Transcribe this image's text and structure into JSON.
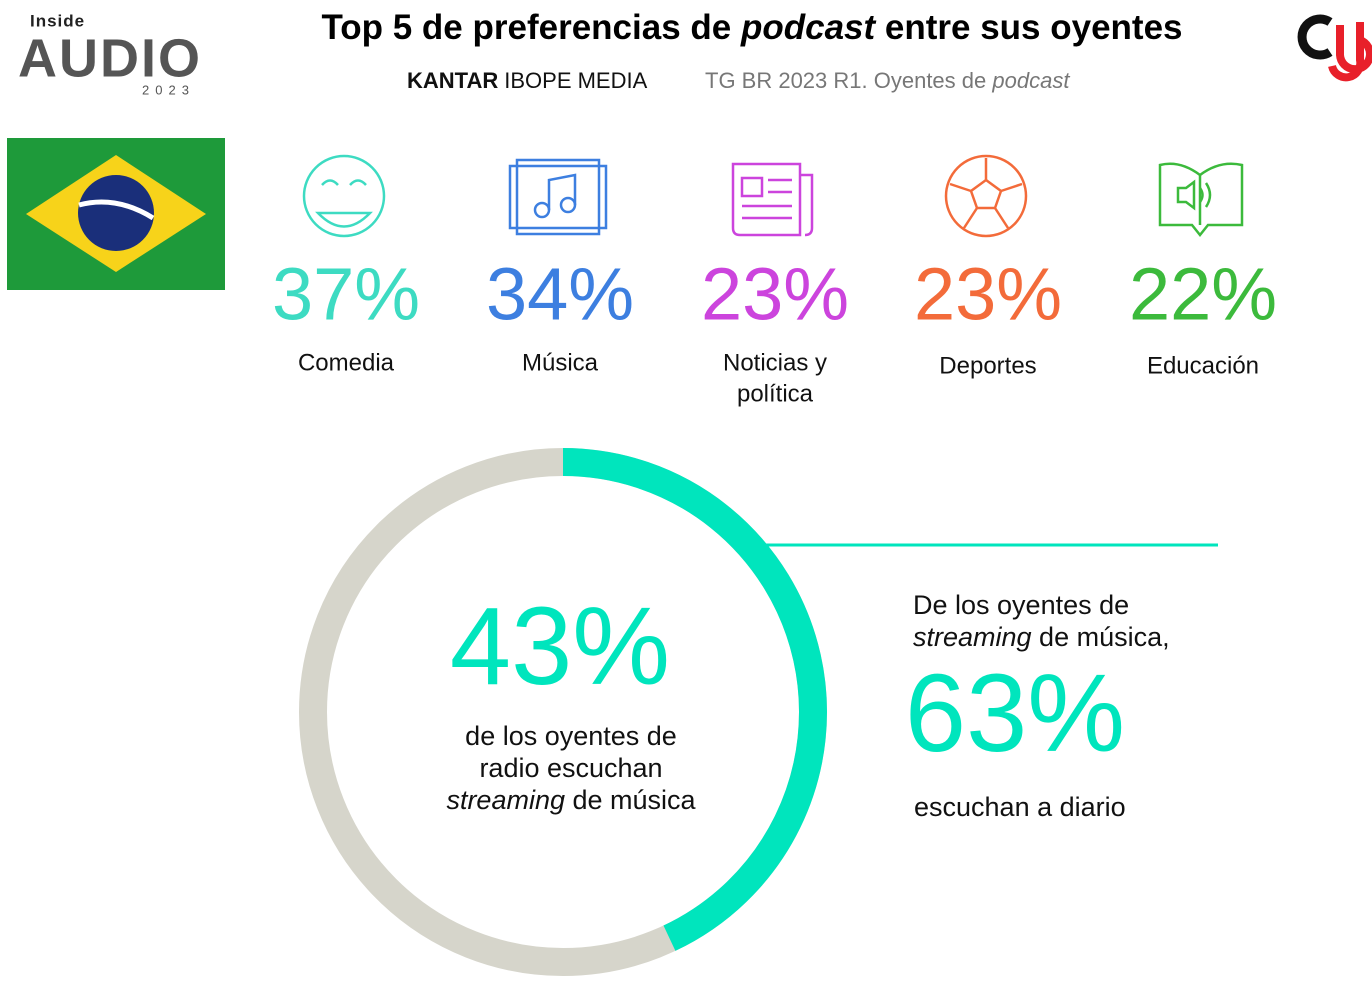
{
  "header": {
    "title": [
      "Top 5 de preferencias de ",
      "podcast",
      " entre sus oyentes"
    ],
    "brand": [
      "KANTAR",
      "IBOPE MEDIA"
    ],
    "source": [
      "TG BR 2023 R1. Oyentes de ",
      "podcast"
    ],
    "logo": {
      "small": "Inside",
      "big": "AUDIO",
      "year": "2023"
    }
  },
  "categories": [
    {
      "label": [
        "Comedia"
      ],
      "value": "37%",
      "color": "#3ddbc2"
    },
    {
      "label": [
        "Música"
      ],
      "value": "34%",
      "color": "#3d7fe0"
    },
    {
      "label": [
        "Noticias y",
        "política"
      ],
      "value": "23%",
      "color": "#cc44dd"
    },
    {
      "label": [
        "Deportes"
      ],
      "value": "23%",
      "color": "#f36b3a"
    },
    {
      "label": [
        "Educación"
      ],
      "value": "22%",
      "color": "#3cba3c"
    }
  ],
  "donut": {
    "value": 43,
    "value_label": "43%",
    "range": [
      0,
      100
    ],
    "color": "#00e5bd",
    "track": "#d6d5cb",
    "text": [
      "de los oyentes de",
      "radio escuchan",
      "streaming",
      " de música"
    ]
  },
  "note": {
    "lines": [
      "De los oyentes de",
      "streaming",
      " de música,"
    ],
    "value": "63%",
    "after": "escuchan a diario"
  }
}
